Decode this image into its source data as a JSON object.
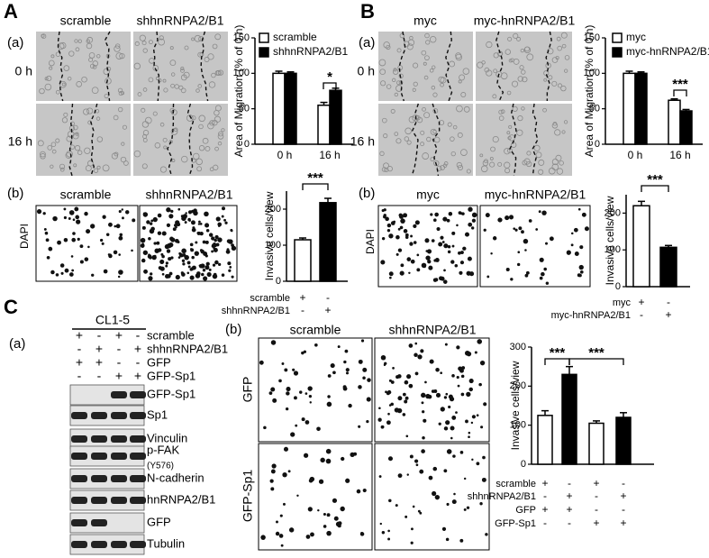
{
  "panels": {
    "A": {
      "label": "A",
      "a": "(a)",
      "b": "(b)",
      "columns": [
        "scramble",
        "shhnRNPA2/B1"
      ],
      "rows": [
        "0 h",
        "16 h"
      ],
      "b_columns": [
        "scramble",
        "shhnRNPA2/B1"
      ],
      "b_row": "DAPI"
    },
    "B": {
      "label": "B",
      "a": "(a)",
      "b": "(b)",
      "columns": [
        "myc",
        "myc-hnRNPA2/B1"
      ],
      "rows": [
        "0 h",
        "16 h"
      ],
      "b_columns": [
        "myc",
        "myc-hnRNPA2/B1"
      ],
      "b_row": "DAPI"
    },
    "C": {
      "label": "C",
      "a": "(a)",
      "b": "(b)",
      "cell_line": "CL1-5",
      "conditions": [
        {
          "name": "scramble",
          "signs": [
            "+",
            "-",
            "+",
            "-"
          ]
        },
        {
          "name": "shhnRNPA2/B1",
          "signs": [
            "-",
            "+",
            "-",
            "+"
          ]
        },
        {
          "name": "GFP",
          "signs": [
            "+",
            "+",
            "-",
            "-"
          ]
        },
        {
          "name": "GFP-Sp1",
          "signs": [
            "-",
            "-",
            "+",
            "+"
          ]
        }
      ],
      "blots": [
        "GFP-Sp1",
        "Sp1",
        "Vinculin",
        "p-FAK",
        "N-cadherin",
        "hnRNPA2/B1",
        "GFP",
        "Tubulin"
      ],
      "blot_note": "(Y576)",
      "b_columns": [
        "scramble",
        "shhnRNPA2/B1"
      ],
      "b_rows": [
        "GFP",
        "GFP-Sp1"
      ]
    }
  },
  "chart_data": [
    {
      "type": "bar",
      "ylabel": "Area of Migration (% of 0 h)",
      "categories": [
        "0 h",
        "16 h"
      ],
      "series": [
        {
          "name": "scramble",
          "color": "#ffffff",
          "values": [
            100,
            55
          ],
          "errors": [
            3,
            4
          ]
        },
        {
          "name": "shhnRNPA2/B1",
          "color": "#000000",
          "values": [
            100,
            76
          ],
          "errors": [
            2,
            3
          ]
        }
      ],
      "ylim": [
        0,
        150
      ],
      "yticks": [
        0,
        50,
        100,
        150
      ],
      "significance": [
        "*"
      ]
    },
    {
      "type": "bar",
      "ylabel": "Invasive cells/view",
      "categories": [
        null,
        null
      ],
      "values": [
        115,
        218
      ],
      "errors": [
        5,
        12
      ],
      "colors": [
        "#ffffff",
        "#000000"
      ],
      "ylim": [
        0,
        250
      ],
      "yticks": [
        0,
        100,
        200
      ],
      "significance": [
        "***"
      ],
      "conditions": [
        {
          "name": "scramble",
          "signs": [
            "+",
            "-"
          ]
        },
        {
          "name": "shhnRNPA2/B1",
          "signs": [
            "-",
            "+"
          ]
        }
      ]
    },
    {
      "type": "bar",
      "ylabel": "Area of Migration (% of 0 h)",
      "categories": [
        "0 h",
        "16 h"
      ],
      "series": [
        {
          "name": "myc",
          "color": "#ffffff",
          "values": [
            100,
            62
          ],
          "errors": [
            3,
            2
          ]
        },
        {
          "name": "myc-hnRNPA2/B1",
          "color": "#000000",
          "values": [
            100,
            47
          ],
          "errors": [
            2,
            2
          ]
        }
      ],
      "ylim": [
        0,
        150
      ],
      "yticks": [
        0,
        50,
        100,
        150
      ],
      "significance": [
        "***"
      ]
    },
    {
      "type": "bar",
      "ylabel": "Invasive cells/view",
      "categories": [
        null,
        null
      ],
      "values": [
        220,
        107
      ],
      "errors": [
        12,
        5
      ],
      "colors": [
        "#ffffff",
        "#000000"
      ],
      "ylim": [
        0,
        250
      ],
      "yticks": [
        0,
        100,
        200
      ],
      "significance": [
        "***"
      ],
      "conditions": [
        {
          "name": "myc",
          "signs": [
            "+",
            "-"
          ]
        },
        {
          "name": "myc-hnRNPA2/B1",
          "signs": [
            "-",
            "+"
          ]
        }
      ]
    },
    {
      "type": "bar",
      "ylabel": "Invasive cells/view",
      "categories": [
        null,
        null,
        null,
        null
      ],
      "values": [
        125,
        230,
        105,
        120
      ],
      "errors": [
        12,
        20,
        6,
        12
      ],
      "colors": [
        "#ffffff",
        "#000000",
        "#ffffff",
        "#000000"
      ],
      "ylim": [
        0,
        300
      ],
      "yticks": [
        0,
        100,
        200,
        300
      ],
      "significance": [
        "***",
        "***"
      ],
      "conditions": [
        {
          "name": "scramble",
          "signs": [
            "+",
            "-",
            "+",
            "-"
          ]
        },
        {
          "name": "shhnRNPA2/B1",
          "signs": [
            "-",
            "+",
            "-",
            "+"
          ]
        },
        {
          "name": "GFP",
          "signs": [
            "+",
            "+",
            "-",
            "-"
          ]
        },
        {
          "name": "GFP-Sp1",
          "signs": [
            "-",
            "-",
            "+",
            "+"
          ]
        }
      ]
    }
  ]
}
